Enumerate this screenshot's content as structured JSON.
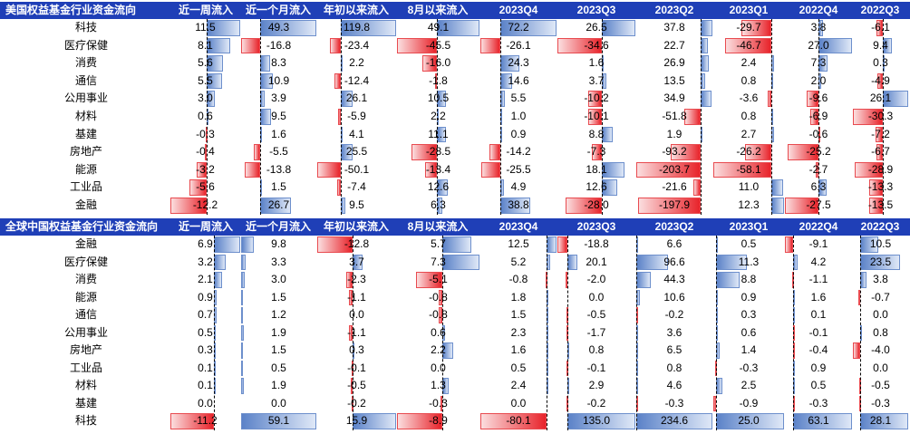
{
  "columns": [
    "近一周流入",
    "近一个月流入",
    "年初以来流入",
    "8月以来流入",
    "2023Q4",
    "2023Q3",
    "2023Q2",
    "2023Q1",
    "2022Q4",
    "2022Q3"
  ],
  "colors": {
    "header_bg": "#1f3fb7",
    "positive": "#5b82c8",
    "negative": "#e8232a"
  },
  "chart_data": [
    {
      "type": "table",
      "title": "美国权益基金行业资金流向",
      "columns": [
        "近一周流入",
        "近一个月流入",
        "年初以来流入",
        "8月以来流入",
        "2023Q4",
        "2023Q3",
        "2023Q2",
        "2023Q1",
        "2022Q4",
        "2022Q3"
      ],
      "rows": [
        {
          "label": "科技",
          "values": [
            11.5,
            49.3,
            119.8,
            49.1,
            72.2,
            26.5,
            37.8,
            -29.7,
            3.8,
            -6.1
          ]
        },
        {
          "label": "医疗保健",
          "values": [
            8.1,
            -16.8,
            -23.4,
            -45.5,
            -26.1,
            -34.6,
            22.7,
            -46.7,
            27.0,
            9.4
          ]
        },
        {
          "label": "消费",
          "values": [
            5.6,
            8.3,
            2.2,
            -16.0,
            24.3,
            1.6,
            26.9,
            2.4,
            7.3,
            0.3
          ]
        },
        {
          "label": "通信",
          "values": [
            5.5,
            10.9,
            -12.4,
            -1.8,
            14.6,
            3.7,
            13.5,
            0.8,
            2.0,
            -4.9
          ]
        },
        {
          "label": "公用事业",
          "values": [
            3.0,
            3.9,
            26.1,
            10.5,
            5.5,
            -10.2,
            34.9,
            -3.6,
            -9.6,
            26.1
          ]
        },
        {
          "label": "材料",
          "values": [
            0.6,
            9.5,
            -5.9,
            2.2,
            1.0,
            -10.1,
            -51.8,
            0.8,
            -6.9,
            -30.3
          ]
        },
        {
          "label": "基建",
          "values": [
            -0.3,
            1.6,
            4.1,
            11.1,
            0.9,
            8.8,
            1.9,
            2.7,
            -0.6,
            -7.2
          ]
        },
        {
          "label": "房地产",
          "values": [
            -0.4,
            -5.5,
            25.5,
            -28.5,
            -14.2,
            -7.3,
            -93.2,
            -26.2,
            -25.2,
            -6.7
          ]
        },
        {
          "label": "能源",
          "values": [
            -3.2,
            -13.8,
            -50.1,
            -13.4,
            -25.5,
            18.1,
            -203.7,
            -58.1,
            -2.7,
            -28.9
          ]
        },
        {
          "label": "工业品",
          "values": [
            -5.6,
            1.5,
            -7.4,
            12.6,
            4.9,
            12.6,
            -21.6,
            11.0,
            6.3,
            -13.3
          ]
        },
        {
          "label": "金融",
          "values": [
            -12.2,
            26.7,
            9.5,
            6.3,
            38.8,
            -28.0,
            -197.9,
            12.3,
            -27.5,
            -13.5
          ]
        }
      ]
    },
    {
      "type": "table",
      "title": "全球中国权益基金行业资金流向",
      "columns": [
        "近一周流入",
        "近一个月流入",
        "年初以来流入",
        "8月以来流入",
        "2023Q4",
        "2023Q3",
        "2023Q2",
        "2023Q1",
        "2022Q4",
        "2022Q3"
      ],
      "rows": [
        {
          "label": "金融",
          "values": [
            6.9,
            9.8,
            -12.8,
            5.7,
            12.5,
            -18.8,
            6.6,
            0.5,
            -9.1,
            10.5
          ]
        },
        {
          "label": "医疗保健",
          "values": [
            3.2,
            3.3,
            3.7,
            7.3,
            5.2,
            20.1,
            96.6,
            11.3,
            4.2,
            23.5
          ]
        },
        {
          "label": "消费",
          "values": [
            2.1,
            3.0,
            -2.3,
            -5.1,
            -0.8,
            -2.0,
            44.3,
            8.8,
            -1.1,
            3.8
          ]
        },
        {
          "label": "能源",
          "values": [
            0.9,
            1.5,
            -1.1,
            -0.8,
            1.8,
            0.0,
            10.6,
            0.9,
            1.6,
            -0.7
          ]
        },
        {
          "label": "通信",
          "values": [
            0.7,
            1.2,
            0.0,
            -0.8,
            1.5,
            -0.5,
            -0.2,
            0.3,
            0.1,
            0.0
          ]
        },
        {
          "label": "公用事业",
          "values": [
            0.5,
            1.9,
            -1.1,
            0.6,
            2.3,
            -1.7,
            3.6,
            0.6,
            -0.1,
            0.8
          ]
        },
        {
          "label": "房地产",
          "values": [
            0.3,
            1.5,
            0.3,
            2.2,
            1.6,
            0.8,
            6.5,
            1.4,
            -0.4,
            -4.0
          ]
        },
        {
          "label": "工业品",
          "values": [
            0.1,
            0.5,
            -0.1,
            0.0,
            0.5,
            -0.1,
            0.8,
            -0.3,
            0.9,
            0.0
          ]
        },
        {
          "label": "材料",
          "values": [
            0.1,
            1.9,
            -0.5,
            1.3,
            2.4,
            2.9,
            4.6,
            2.5,
            0.5,
            -0.5
          ]
        },
        {
          "label": "基建",
          "values": [
            0.0,
            0.0,
            -0.2,
            -0.3,
            0.0,
            -0.2,
            -0.3,
            -0.9,
            -0.3,
            -0.3
          ]
        },
        {
          "label": "科技",
          "values": [
            -11.2,
            59.1,
            15.9,
            -8.9,
            -80.1,
            135.0,
            234.6,
            25.0,
            63.1,
            28.1
          ]
        }
      ]
    }
  ]
}
